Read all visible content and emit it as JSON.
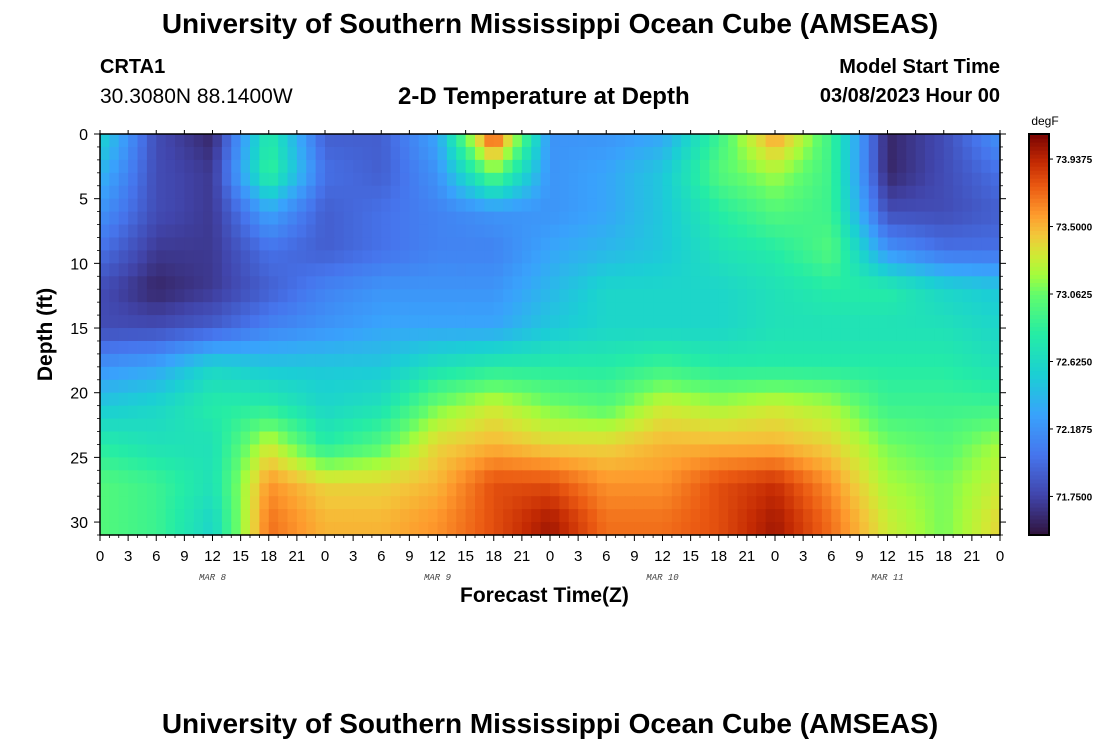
{
  "header": {
    "title": "University of Southern Mississippi Ocean Cube (AMSEAS)",
    "station": "CRTA1",
    "coordinates": "30.3080N  88.1400W",
    "subtitle": "2-D Temperature at Depth",
    "model_start_label": "Model Start Time",
    "model_start_value": "03/08/2023 Hour 00"
  },
  "footer": {
    "title": "University of Southern Mississippi Ocean Cube (AMSEAS)"
  },
  "chart_data": {
    "type": "heatmap",
    "xlabel": "Forecast Time(Z)",
    "ylabel": "Depth (ft)",
    "x_tick_labels": [
      "0",
      "3",
      "6",
      "9",
      "12",
      "15",
      "18",
      "21",
      "0",
      "3",
      "6",
      "9",
      "12",
      "15",
      "18",
      "21",
      "0",
      "3",
      "6",
      "9",
      "12",
      "15",
      "18",
      "21",
      "0",
      "3",
      "6",
      "9",
      "12",
      "15",
      "18",
      "21",
      "0"
    ],
    "x_range_hours": [
      0,
      96
    ],
    "date_labels": [
      {
        "label": "MAR 8",
        "hour": 12
      },
      {
        "label": "MAR 9",
        "hour": 36
      },
      {
        "label": "MAR 10",
        "hour": 60
      },
      {
        "label": "MAR 11",
        "hour": 84
      }
    ],
    "y_tick_labels": [
      "0",
      "5",
      "10",
      "15",
      "20",
      "25",
      "30"
    ],
    "y_range_ft": [
      0,
      31
    ],
    "y_inverted": true,
    "colorbar": {
      "unit": "degF",
      "min": 71.5,
      "max": 74.1,
      "tick_values": [
        71.75,
        72.1875,
        72.625,
        73.0625,
        73.5,
        73.9375
      ],
      "tick_labels": [
        "71.7500",
        "72.1875",
        "72.6250",
        "73.0625",
        "73.5000",
        "73.9375"
      ],
      "colormap": "turbo"
    },
    "grid_hours": [
      0,
      6,
      12,
      18,
      24,
      30,
      36,
      42,
      48,
      54,
      60,
      66,
      72,
      78,
      84,
      90,
      96
    ],
    "grid_depths_ft": [
      0,
      3,
      6,
      9,
      12,
      15,
      18,
      21,
      24,
      27,
      30
    ],
    "values_degF": [
      [
        72.6,
        71.8,
        71.6,
        72.8,
        71.9,
        71.9,
        72.3,
        73.9,
        72.2,
        72.2,
        72.3,
        72.9,
        73.6,
        72.9,
        71.6,
        71.8,
        72.2
      ],
      [
        72.4,
        71.8,
        71.7,
        72.9,
        72.0,
        71.9,
        72.2,
        73.1,
        72.2,
        72.3,
        72.5,
        73.0,
        73.2,
        72.9,
        71.6,
        71.8,
        72.0
      ],
      [
        72.2,
        71.8,
        71.7,
        72.3,
        71.9,
        72.0,
        72.1,
        72.2,
        72.2,
        72.3,
        72.5,
        72.8,
        73.0,
        72.9,
        71.8,
        71.8,
        71.9
      ],
      [
        72.0,
        71.7,
        71.7,
        72.0,
        71.9,
        72.0,
        72.1,
        72.1,
        72.3,
        72.4,
        72.5,
        72.7,
        72.8,
        73.0,
        72.2,
        72.0,
        72.0
      ],
      [
        71.8,
        71.6,
        71.7,
        71.9,
        72.1,
        72.2,
        72.2,
        72.2,
        72.4,
        72.6,
        72.6,
        72.6,
        72.7,
        72.8,
        72.8,
        72.6,
        72.5
      ],
      [
        71.8,
        71.8,
        71.9,
        72.1,
        72.2,
        72.3,
        72.3,
        72.3,
        72.5,
        72.6,
        72.6,
        72.6,
        72.7,
        72.7,
        72.7,
        72.7,
        72.6
      ],
      [
        72.2,
        72.3,
        72.6,
        72.5,
        72.5,
        72.5,
        72.7,
        72.8,
        72.8,
        72.8,
        72.9,
        72.8,
        72.8,
        72.8,
        72.8,
        72.8,
        72.7
      ],
      [
        72.5,
        72.6,
        72.8,
        72.8,
        72.6,
        72.7,
        73.1,
        73.3,
        73.1,
        73.0,
        73.3,
        73.2,
        73.3,
        73.2,
        72.9,
        72.9,
        72.9
      ],
      [
        72.8,
        72.7,
        72.7,
        73.3,
        72.8,
        73.0,
        73.4,
        73.5,
        73.4,
        73.4,
        73.5,
        73.5,
        73.5,
        73.4,
        73.1,
        73.0,
        73.2
      ],
      [
        73.0,
        72.9,
        72.7,
        73.6,
        73.4,
        73.4,
        73.5,
        73.8,
        73.8,
        73.6,
        73.6,
        73.8,
        73.9,
        73.6,
        73.2,
        73.1,
        73.3
      ],
      [
        73.0,
        72.9,
        72.6,
        73.7,
        73.5,
        73.5,
        73.6,
        73.8,
        74.0,
        73.7,
        73.7,
        73.8,
        74.0,
        73.7,
        73.3,
        73.1,
        73.4
      ]
    ]
  }
}
